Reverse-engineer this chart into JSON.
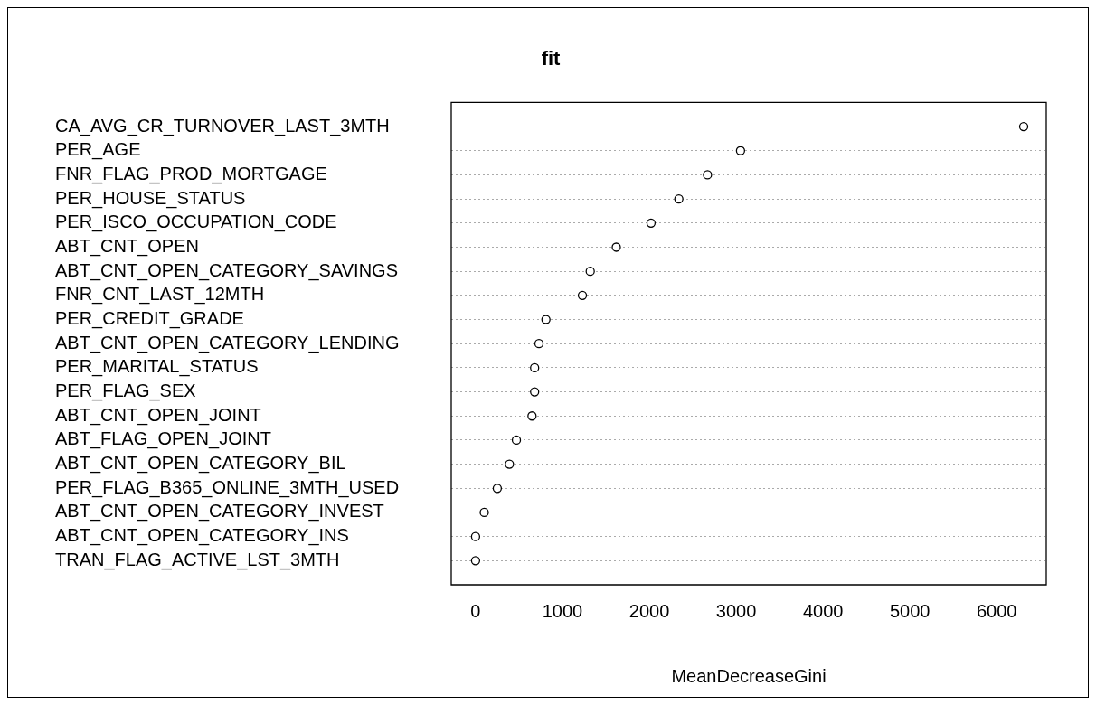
{
  "chart_data": {
    "type": "scatter",
    "title": "fit",
    "xlabel": "MeanDecreaseGini",
    "categories": [
      "CA_AVG_CR_TURNOVER_LAST_3MTH",
      "PER_AGE",
      "FNR_FLAG_PROD_MORTGAGE",
      "PER_HOUSE_STATUS",
      "PER_ISCO_OCCUPATION_CODE",
      "ABT_CNT_OPEN",
      "ABT_CNT_OPEN_CATEGORY_SAVINGS",
      "FNR_CNT_LAST_12MTH",
      "PER_CREDIT_GRADE",
      "ABT_CNT_OPEN_CATEGORY_LENDING",
      "PER_MARITAL_STATUS",
      "PER_FLAG_SEX",
      "ABT_CNT_OPEN_JOINT",
      "ABT_FLAG_OPEN_JOINT",
      "ABT_CNT_OPEN_CATEGORY_BIL",
      "PER_FLAG_B365_ONLINE_3MTH_USED",
      "ABT_CNT_OPEN_CATEGORY_INVEST",
      "ABT_CNT_OPEN_CATEGORY_INS",
      "TRAN_FLAG_ACTIVE_LST_3MTH"
    ],
    "values": [
      6310,
      3050,
      2670,
      2340,
      2020,
      1620,
      1320,
      1230,
      810,
      730,
      680,
      680,
      650,
      470,
      390,
      250,
      100,
      0,
      0
    ],
    "color": "#000000",
    "orientation": "horizontal",
    "marker": "circle",
    "grid": "y",
    "xlim": [
      -280,
      6570
    ],
    "xticks": [
      0,
      1000,
      2000,
      3000,
      4000,
      5000,
      6000
    ]
  }
}
